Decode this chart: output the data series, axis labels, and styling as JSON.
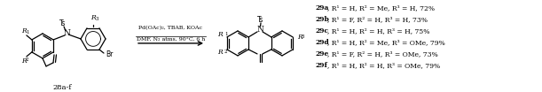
{
  "background_color": "#ffffff",
  "arrow_text_top": "Pd(OAc)₂, TBAB, KOAc",
  "arrow_text_bottom": "DMF, N₂ atms, 90°C, 6 h",
  "reactant_label": "28a-f",
  "product_labels_bold": [
    "29a",
    "29b",
    "29c",
    "29d",
    "29e",
    "29f"
  ],
  "product_labels_text": [
    ", R¹ = H, R² = Me, R³ = H, 72%",
    ", R¹ = F, R² = H, R³ = H, 73%",
    ", R¹ = H, R² = H, R³ = H, 75%",
    ", R¹ = H, R² = Me, R³ = OMe, 79%",
    ", R¹ = F, R² = H, R³ = OMe, 73%",
    ", R¹ = H, R² = H, R³ = OMe, 79%"
  ],
  "figsize": [
    6.11,
    1.04
  ],
  "dpi": 100
}
